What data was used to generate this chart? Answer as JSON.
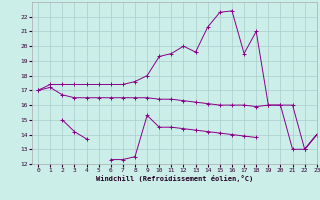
{
  "xlabel": "Windchill (Refroidissement éolien,°C)",
  "bg_color": "#cceee8",
  "grid_color": "#aacccc",
  "line_color": "#880088",
  "x": [
    0,
    1,
    2,
    3,
    4,
    5,
    6,
    7,
    8,
    9,
    10,
    11,
    12,
    13,
    14,
    15,
    16,
    17,
    18,
    19,
    20,
    21,
    22,
    23
  ],
  "line1": [
    17.0,
    17.4,
    17.4,
    17.4,
    17.4,
    17.4,
    17.4,
    17.4,
    17.6,
    18.0,
    19.3,
    19.5,
    20.0,
    19.6,
    21.3,
    22.3,
    22.4,
    19.5,
    21.0,
    16.0,
    16.0,
    13.0,
    13.0,
    14.0
  ],
  "line2": [
    17.0,
    17.2,
    16.7,
    16.5,
    16.5,
    16.5,
    16.5,
    16.5,
    16.5,
    16.5,
    16.4,
    16.4,
    16.3,
    16.2,
    16.1,
    16.0,
    16.0,
    16.0,
    15.9,
    16.0,
    16.0,
    16.0,
    13.0,
    14.0
  ],
  "line3_segments": [
    [
      [
        2,
        3,
        4
      ],
      [
        15.0,
        14.2,
        13.7
      ]
    ],
    [
      [
        6,
        7,
        8,
        9,
        10,
        11,
        12,
        13,
        14,
        15,
        16,
        17,
        18
      ],
      [
        12.3,
        12.3,
        12.5,
        15.3,
        14.5,
        14.5,
        14.4,
        14.3,
        14.2,
        14.1,
        14.0,
        13.9,
        13.8
      ]
    ],
    [
      [
        22,
        23
      ],
      [
        13.0,
        14.0
      ]
    ]
  ],
  "ylim": [
    12,
    23
  ],
  "xlim": [
    -0.5,
    23
  ],
  "yticks": [
    12,
    13,
    14,
    15,
    16,
    17,
    18,
    19,
    20,
    21,
    22
  ],
  "xticks": [
    0,
    1,
    2,
    3,
    4,
    5,
    6,
    7,
    8,
    9,
    10,
    11,
    12,
    13,
    14,
    15,
    16,
    17,
    18,
    19,
    20,
    21,
    22,
    23
  ]
}
